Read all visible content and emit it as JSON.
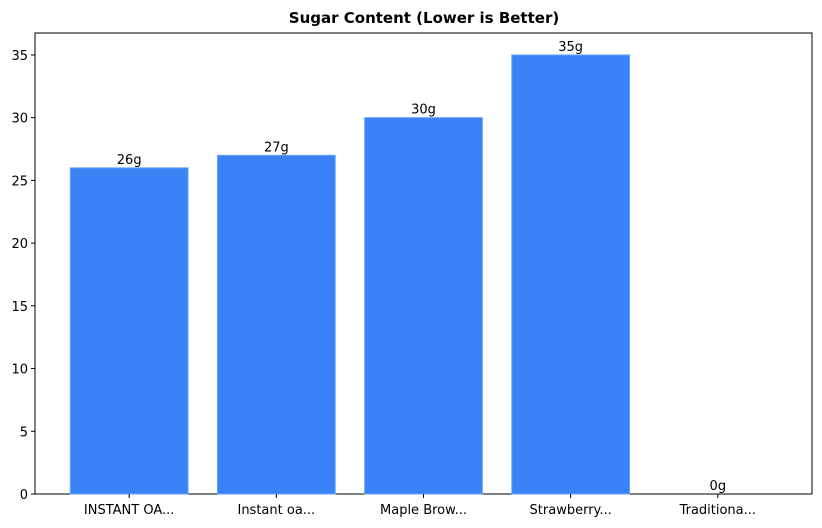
{
  "chart_data": {
    "type": "bar",
    "title": "Sugar Content (Lower is Better)",
    "categories": [
      "INSTANT OA...",
      "Instant oa...",
      "Maple Brow...",
      "Strawberry...",
      "Traditiona..."
    ],
    "values": [
      26,
      27,
      30,
      35,
      0
    ],
    "value_labels": [
      "26g",
      "27g",
      "30g",
      "35g",
      "0g"
    ],
    "color": "#3b82f6",
    "ylim": [
      0,
      36.75
    ],
    "yticks": [
      0,
      5,
      10,
      15,
      20,
      25,
      30,
      35
    ],
    "grid": false
  }
}
